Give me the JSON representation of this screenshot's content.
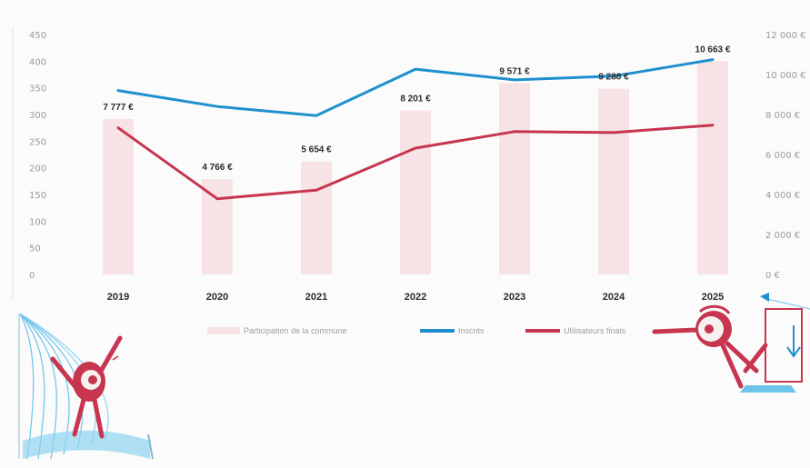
{
  "chart_data": {
    "type": "bar+line",
    "categories": [
      "2019",
      "2020",
      "2021",
      "2022",
      "2023",
      "2024",
      "2025"
    ],
    "left_axis": {
      "ticks": [
        "450",
        "400",
        "350",
        "300",
        "250",
        "200",
        "150",
        "100",
        "50",
        "0"
      ],
      "range": [
        0,
        450
      ]
    },
    "right_axis": {
      "ticks": [
        "12 000 €",
        "10 000 €",
        "8 000 €",
        "6 000 €",
        "4 000 €",
        "2 000 €",
        "0 €"
      ],
      "range": [
        0,
        12000
      ]
    },
    "bars": {
      "name": "Participation de la commune",
      "axis": "right",
      "values": [
        7777,
        4766,
        5654,
        8201,
        9571,
        9288,
        10663
      ],
      "labels": [
        "7 777 €",
        "4 766 €",
        "5 654 €",
        "8 201 €",
        "9 571 €",
        "9 288 €",
        "10 663 €"
      ],
      "color": "#f7e3e6"
    },
    "series": [
      {
        "name": "Inscrits",
        "axis": "left",
        "values": [
          345,
          315,
          298,
          385,
          365,
          372,
          403
        ],
        "color": "#1e90cc"
      },
      {
        "name": "Utilisateurs finals",
        "axis": "left",
        "values": [
          275,
          142,
          158,
          237,
          268,
          266,
          280
        ],
        "color": "#c7354f"
      }
    ],
    "legend": {
      "placement": "bottom"
    },
    "grid": false
  },
  "illustrations": {
    "left": "character-at-curtain",
    "right": "character-pushing-box"
  }
}
